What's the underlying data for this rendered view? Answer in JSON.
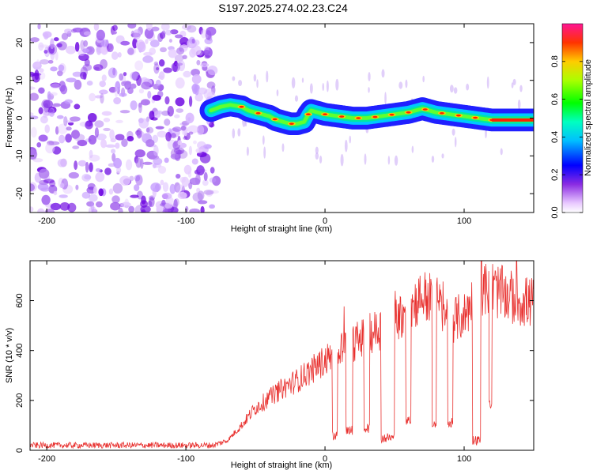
{
  "title": "S197.2025.274.02.23.C24",
  "chart_data": [
    {
      "type": "heatmap",
      "name": "spectrogram",
      "xlabel": "Height of straight line (km)",
      "ylabel": "Frequency (Hz)",
      "xlim": [
        -212,
        150
      ],
      "ylim": [
        -25,
        25
      ],
      "xticks": [
        -200,
        -100,
        0,
        100
      ],
      "yticks": [
        -20,
        -10,
        0,
        10,
        20
      ],
      "colorbar": {
        "label": "Normalized spectral amplitude",
        "range": [
          0,
          1
        ],
        "ticks": [
          0.0,
          0.2,
          0.4,
          0.6,
          0.8
        ]
      },
      "noise_region_x": [
        -212,
        -78
      ],
      "ridge": [
        {
          "x": -82,
          "f": 2
        },
        {
          "x": -75,
          "f": 3
        },
        {
          "x": -68,
          "f": 3.5
        },
        {
          "x": -60,
          "f": 3
        },
        {
          "x": -55,
          "f": 2
        },
        {
          "x": -50,
          "f": 1.5
        },
        {
          "x": -45,
          "f": 1
        },
        {
          "x": -40,
          "f": 0.5
        },
        {
          "x": -35,
          "f": -0.5
        },
        {
          "x": -30,
          "f": -1
        },
        {
          "x": -25,
          "f": -1.5
        },
        {
          "x": -20,
          "f": -1.5
        },
        {
          "x": -15,
          "f": -1
        },
        {
          "x": -12,
          "f": 1
        },
        {
          "x": -10,
          "f": 2
        },
        {
          "x": -5,
          "f": 1.5
        },
        {
          "x": 0,
          "f": 1
        },
        {
          "x": 10,
          "f": 0.5
        },
        {
          "x": 20,
          "f": 0
        },
        {
          "x": 30,
          "f": 0
        },
        {
          "x": 40,
          "f": 0.5
        },
        {
          "x": 50,
          "f": 1
        },
        {
          "x": 60,
          "f": 1.5
        },
        {
          "x": 70,
          "f": 2.5
        },
        {
          "x": 75,
          "f": 2
        },
        {
          "x": 80,
          "f": 1.5
        },
        {
          "x": 90,
          "f": 1
        },
        {
          "x": 100,
          "f": 0.5
        },
        {
          "x": 110,
          "f": 0
        },
        {
          "x": 120,
          "f": -0.5
        },
        {
          "x": 150,
          "f": -0.5
        }
      ]
    },
    {
      "type": "line",
      "name": "snr",
      "xlabel": "Height of straight line (km)",
      "ylabel": "SNR (10 * v/v)",
      "xlim": [
        -212,
        150
      ],
      "ylim": [
        0,
        760
      ],
      "xticks": [
        -200,
        -100,
        0,
        100
      ],
      "yticks": [
        0,
        200,
        400,
        600
      ],
      "color": "#e8312f",
      "envelope": [
        {
          "x": -212,
          "y": 20
        },
        {
          "x": -80,
          "y": 20
        },
        {
          "x": -70,
          "y": 40
        },
        {
          "x": -60,
          "y": 100
        },
        {
          "x": -50,
          "y": 170
        },
        {
          "x": -40,
          "y": 210
        },
        {
          "x": -30,
          "y": 250
        },
        {
          "x": -20,
          "y": 280
        },
        {
          "x": -10,
          "y": 320
        },
        {
          "x": 0,
          "y": 360
        },
        {
          "x": 10,
          "y": 400
        },
        {
          "x": 20,
          "y": 430
        },
        {
          "x": 30,
          "y": 460
        },
        {
          "x": 40,
          "y": 490
        },
        {
          "x": 50,
          "y": 520
        },
        {
          "x": 60,
          "y": 570
        },
        {
          "x": 70,
          "y": 620
        },
        {
          "x": 80,
          "y": 600
        },
        {
          "x": 90,
          "y": 520
        },
        {
          "x": 100,
          "y": 540
        },
        {
          "x": 110,
          "y": 640
        },
        {
          "x": 120,
          "y": 650
        },
        {
          "x": 130,
          "y": 620
        },
        {
          "x": 140,
          "y": 600
        },
        {
          "x": 150,
          "y": 590
        }
      ],
      "dropouts": [
        {
          "from": 5,
          "to": 9,
          "y": 60
        },
        {
          "from": 15,
          "to": 20,
          "y": 80
        },
        {
          "from": 28,
          "to": 32,
          "y": 90
        },
        {
          "from": 40,
          "to": 50,
          "y": 50
        },
        {
          "from": 58,
          "to": 62,
          "y": 120
        },
        {
          "from": 77,
          "to": 80,
          "y": 100
        },
        {
          "from": 88,
          "to": 92,
          "y": 110
        },
        {
          "from": 106,
          "to": 112,
          "y": 40
        },
        {
          "from": 118,
          "to": 120,
          "y": 180
        }
      ]
    }
  ]
}
